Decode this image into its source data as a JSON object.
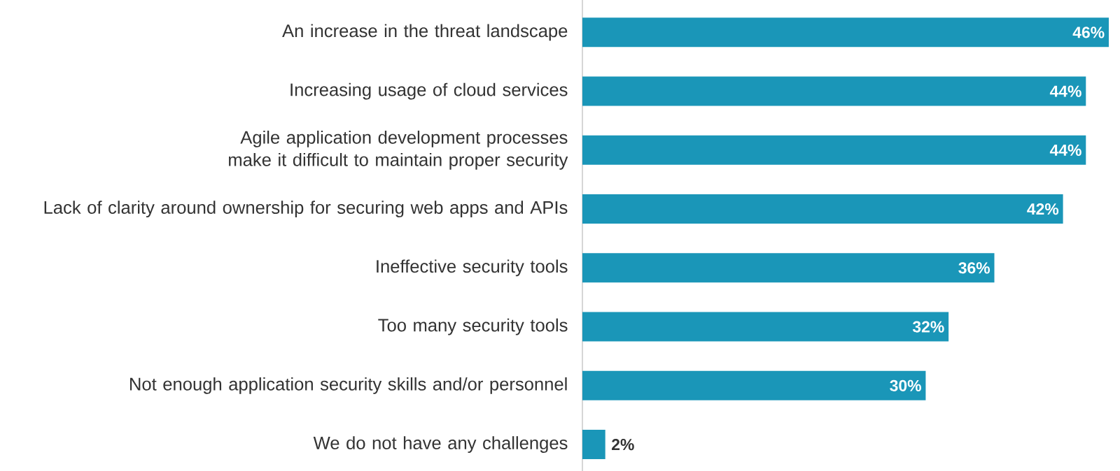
{
  "chart_data": {
    "type": "bar",
    "orientation": "horizontal",
    "categories": [
      "An increase in the threat landscape",
      "Increasing usage of cloud services",
      "Agile application development processes make it difficult to maintain proper security",
      "Lack of clarity around ownership for securing web apps and APIs",
      "Ineffective security tools",
      "Too many security tools",
      "Not enough application security skills and/or personnel",
      "We do not have any challenges"
    ],
    "values": [
      46,
      44,
      44,
      42,
      36,
      32,
      30,
      2
    ],
    "value_labels": [
      "46%",
      "44%",
      "44%",
      "42%",
      "36%",
      "32%",
      "30%",
      "2%"
    ],
    "color": "#1a96b8"
  }
}
